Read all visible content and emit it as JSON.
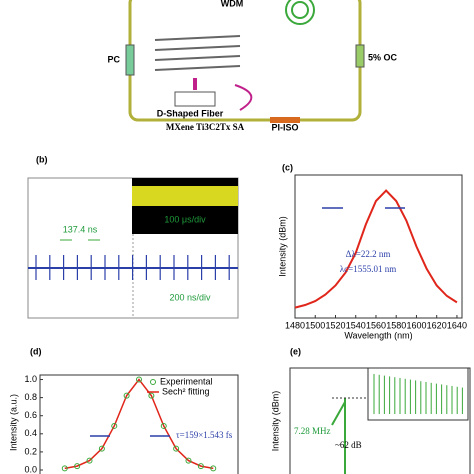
{
  "diagram": {
    "labels": [
      "WDM",
      "PC",
      "5% OC",
      "D-Shaped Fiber",
      "MXene Ti3C2Tx SA",
      "PI-ISO"
    ]
  },
  "panels": [
    "(b)",
    "(c)",
    "(d)",
    "(e)"
  ],
  "chart_data": [
    {
      "type": "oscilloscope",
      "annotations": [
        "137.4 ns",
        "100 μs/div",
        "200 ns/div"
      ]
    },
    {
      "type": "line",
      "xlabel": "Wavelength (nm)",
      "ylabel": "Intensity (dBm)",
      "x": [
        1480,
        1490,
        1500,
        1510,
        1520,
        1530,
        1540,
        1550,
        1560,
        1570,
        1580,
        1590,
        1600,
        1610,
        1620,
        1630,
        1640
      ],
      "values": [
        0.08,
        0.1,
        0.13,
        0.18,
        0.25,
        0.35,
        0.5,
        0.72,
        0.9,
        0.98,
        0.9,
        0.75,
        0.55,
        0.38,
        0.25,
        0.17,
        0.12
      ],
      "color": "#e0261b",
      "xlim": [
        1480,
        1645
      ],
      "ylim": [
        0,
        1.1
      ],
      "xticks": [
        1480,
        1500,
        1520,
        1540,
        1560,
        1580,
        1600,
        1620,
        1640
      ],
      "annotations": [
        "Δλ=22.2 nm",
        "λc=1555.01 nm"
      ]
    },
    {
      "type": "autocorrelation",
      "ylabel": "Intensity (a.u.)",
      "x": [
        -3,
        -2.5,
        -2,
        -1.5,
        -1,
        -0.5,
        0,
        0.5,
        1,
        1.5,
        2,
        2.5,
        3
      ],
      "series": [
        {
          "name": "Experimental",
          "color": "#3aa83a",
          "values": [
            0.018,
            0.043,
            0.104,
            0.236,
            0.487,
            0.822,
            1,
            0.822,
            0.487,
            0.236,
            0.104,
            0.043,
            0.018
          ]
        },
        {
          "name": "Sech² fitting",
          "color": "#e0261b",
          "values": [
            0.018,
            0.043,
            0.104,
            0.236,
            0.487,
            0.822,
            1,
            0.822,
            0.487,
            0.236,
            0.104,
            0.043,
            0.018
          ]
        }
      ],
      "xlim": [
        -4,
        4
      ],
      "ylim": [
        0,
        1.05
      ],
      "yticks": [
        {
          "value": 0,
          "label": "0.0"
        },
        0.2,
        0.4,
        0.6,
        0.8,
        {
          "value": 1,
          "label": "1.0"
        }
      ],
      "annotations": [
        "τ=159×1.543 fs"
      ]
    },
    {
      "type": "rf",
      "ylabel": "Intensity (dBm)",
      "annotations": [
        "7.28 MHz",
        "~62 dB"
      ]
    }
  ]
}
